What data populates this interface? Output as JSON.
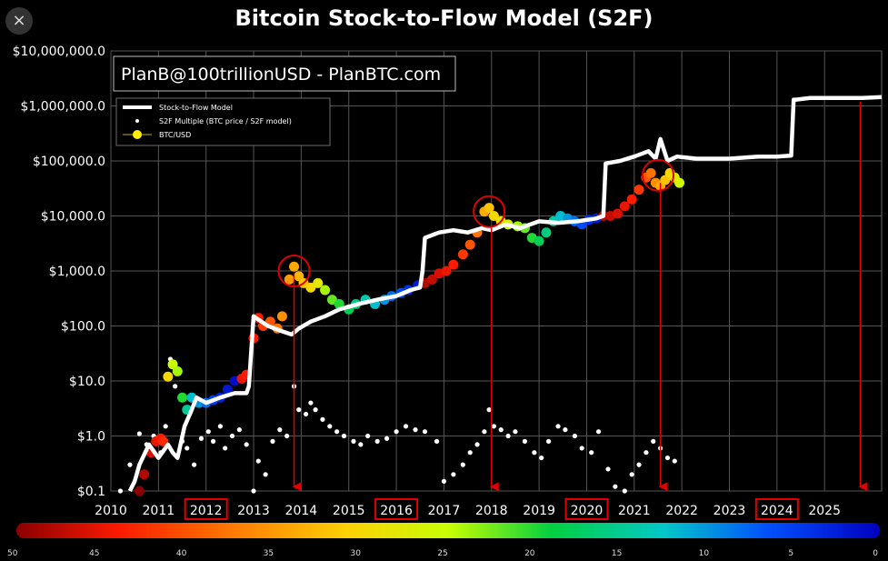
{
  "close_label": "×",
  "chart_data": {
    "type": "scatter",
    "title": "Bitcoin Stock-to-Flow Model (S2F)",
    "credit": "PlanB@100trillionUSD - PlanBTC.com",
    "y_scale": "log",
    "ylim": [
      0.1,
      10000000
    ],
    "xlim": [
      2010,
      2026.2
    ],
    "y_ticks": [
      {
        "value": 0.1,
        "label": "$0.1"
      },
      {
        "value": 1,
        "label": "$1.0"
      },
      {
        "value": 10,
        "label": "$10.0"
      },
      {
        "value": 100,
        "label": "$100.0"
      },
      {
        "value": 1000,
        "label": "$1,000.0"
      },
      {
        "value": 10000,
        "label": "$10,000.0"
      },
      {
        "value": 100000,
        "label": "$100,000.0"
      },
      {
        "value": 1000000,
        "label": "$1,000,000.0"
      },
      {
        "value": 10000000,
        "label": "$10,000,000.0"
      }
    ],
    "x_ticks": [
      {
        "value": 2010,
        "label": "2010",
        "boxed": false
      },
      {
        "value": 2011,
        "label": "2011",
        "boxed": false
      },
      {
        "value": 2012,
        "label": "2012",
        "boxed": true
      },
      {
        "value": 2013,
        "label": "2013",
        "boxed": false
      },
      {
        "value": 2014,
        "label": "2014",
        "boxed": false
      },
      {
        "value": 2015,
        "label": "2015",
        "boxed": false
      },
      {
        "value": 2016,
        "label": "2016",
        "boxed": true
      },
      {
        "value": 2017,
        "label": "2017",
        "boxed": false
      },
      {
        "value": 2018,
        "label": "2018",
        "boxed": false
      },
      {
        "value": 2019,
        "label": "2019",
        "boxed": false
      },
      {
        "value": 2020,
        "label": "2020",
        "boxed": true
      },
      {
        "value": 2021,
        "label": "2021",
        "boxed": false
      },
      {
        "value": 2022,
        "label": "2022",
        "boxed": false
      },
      {
        "value": 2023,
        "label": "2023",
        "boxed": false
      },
      {
        "value": 2024,
        "label": "2024",
        "boxed": true
      },
      {
        "value": 2025,
        "label": "2025",
        "boxed": false
      }
    ],
    "grid": true,
    "legend_position": "top-left",
    "legend": [
      {
        "name": "Stock-to-Flow Model",
        "marker": "line",
        "color": "#ffffff"
      },
      {
        "name": "S2F Multiple (BTC price / S2F model)",
        "marker": "dot",
        "color": "#ffffff"
      },
      {
        "name": "BTC/USD",
        "marker": "circle",
        "color": "#ffee00"
      }
    ],
    "series": [
      {
        "name": "Stock-to-Flow Model",
        "kind": "line",
        "color": "#ffffff",
        "x": [
          2010.4,
          2010.5,
          2010.6,
          2010.8,
          2011.0,
          2011.2,
          2011.3,
          2011.4,
          2011.55,
          2011.7,
          2011.8,
          2012.0,
          2012.3,
          2012.6,
          2012.85,
          2012.9,
          2013.0,
          2013.3,
          2013.6,
          2013.8,
          2013.95,
          2014.2,
          2014.5,
          2014.8,
          2015.2,
          2015.6,
          2016.0,
          2016.3,
          2016.5,
          2016.55,
          2016.6,
          2016.9,
          2017.2,
          2017.5,
          2017.8,
          2018.0,
          2018.3,
          2018.6,
          2019.0,
          2019.4,
          2019.8,
          2020.2,
          2020.35,
          2020.4,
          2020.7,
          2021.0,
          2021.3,
          2021.45,
          2021.55,
          2021.7,
          2021.9,
          2022.3,
          2023.0,
          2023.6,
          2024.0,
          2024.3,
          2024.35,
          2024.4,
          2024.7,
          2025.2,
          2025.8,
          2026.2
        ],
        "y": [
          0.1,
          0.15,
          0.3,
          0.7,
          0.4,
          0.7,
          0.5,
          0.4,
          1.5,
          3,
          5,
          4,
          5,
          6,
          6,
          8,
          150,
          100,
          80,
          70,
          90,
          120,
          150,
          200,
          250,
          300,
          350,
          450,
          500,
          1000,
          4000,
          5000,
          5500,
          5000,
          6000,
          5500,
          7000,
          6000,
          8000,
          7500,
          8000,
          9000,
          10000,
          90000,
          100000,
          120000,
          150000,
          110000,
          250000,
          100000,
          120000,
          110000,
          110000,
          120000,
          120000,
          125000,
          1300000,
          1300000,
          1400000,
          1400000,
          1400000,
          1450000
        ]
      },
      {
        "name": "S2F Multiple (BTC price / S2F model)",
        "kind": "dots",
        "color": "#ffffff",
        "x": [
          2010.2,
          2010.4,
          2010.6,
          2010.75,
          2010.9,
          2011.05,
          2011.15,
          2011.25,
          2011.35,
          2011.5,
          2011.6,
          2011.75,
          2011.9,
          2012.05,
          2012.15,
          2012.3,
          2012.4,
          2012.55,
          2012.7,
          2012.85,
          2013.0,
          2013.1,
          2013.25,
          2013.4,
          2013.55,
          2013.7,
          2013.85,
          2013.95,
          2014.1,
          2014.2,
          2014.3,
          2014.45,
          2014.6,
          2014.75,
          2014.9,
          2015.1,
          2015.25,
          2015.4,
          2015.6,
          2015.8,
          2016.0,
          2016.2,
          2016.4,
          2016.6,
          2016.85,
          2017.0,
          2017.2,
          2017.4,
          2017.55,
          2017.7,
          2017.85,
          2017.95,
          2018.05,
          2018.2,
          2018.35,
          2018.5,
          2018.7,
          2018.9,
          2019.05,
          2019.2,
          2019.4,
          2019.55,
          2019.75,
          2019.9,
          2020.1,
          2020.25,
          2020.45,
          2020.6,
          2020.8,
          2020.95,
          2021.1,
          2021.25,
          2021.4,
          2021.55,
          2021.7,
          2021.85
        ],
        "y": [
          0.1,
          0.3,
          1.1,
          0.7,
          1.0,
          0.5,
          1.5,
          25,
          8,
          0.8,
          0.6,
          0.3,
          0.9,
          1.2,
          0.8,
          1.5,
          0.6,
          1.0,
          1.3,
          0.7,
          0.1,
          0.35,
          0.2,
          0.8,
          1.3,
          1.0,
          8,
          3,
          2.5,
          4,
          3,
          2,
          1.5,
          1.2,
          1.0,
          0.8,
          0.7,
          1.0,
          0.8,
          0.9,
          1.2,
          1.5,
          1.3,
          1.2,
          0.8,
          0.15,
          0.2,
          0.3,
          0.5,
          0.7,
          1.2,
          3,
          1.5,
          1.3,
          1.0,
          1.2,
          0.8,
          0.5,
          0.4,
          0.8,
          1.5,
          1.3,
          1.0,
          0.6,
          0.5,
          1.2,
          0.25,
          0.12,
          0.1,
          0.2,
          0.3,
          0.5,
          0.8,
          0.6,
          0.4,
          0.35
        ]
      },
      {
        "name": "BTC/USD",
        "kind": "colored-dots",
        "colorscale": "S2F days to halving (0-50)",
        "x": [
          2010.6,
          2010.7,
          2010.85,
          2010.95,
          2011.05,
          2011.1,
          2011.2,
          2011.3,
          2011.4,
          2011.5,
          2011.6,
          2011.7,
          2011.85,
          2012.0,
          2012.15,
          2012.3,
          2012.45,
          2012.6,
          2012.75,
          2012.85,
          2013.0,
          2013.1,
          2013.2,
          2013.35,
          2013.5,
          2013.6,
          2013.75,
          2013.85,
          2013.95,
          2014.05,
          2014.2,
          2014.35,
          2014.5,
          2014.65,
          2014.8,
          2015.0,
          2015.15,
          2015.35,
          2015.55,
          2015.75,
          2015.9,
          2016.1,
          2016.25,
          2016.45,
          2016.6,
          2016.75,
          2016.9,
          2017.05,
          2017.2,
          2017.4,
          2017.55,
          2017.7,
          2017.85,
          2017.95,
          2018.05,
          2018.2,
          2018.35,
          2018.55,
          2018.7,
          2018.85,
          2019.0,
          2019.15,
          2019.3,
          2019.45,
          2019.6,
          2019.75,
          2019.9,
          2020.05,
          2020.2,
          2020.35,
          2020.5,
          2020.65,
          2020.8,
          2020.95,
          2021.1,
          2021.25,
          2021.35,
          2021.45,
          2021.55,
          2021.65,
          2021.75,
          2021.85,
          2021.95
        ],
        "y": [
          0.1,
          0.2,
          0.5,
          0.8,
          0.9,
          0.8,
          12,
          20,
          15,
          5,
          3,
          5,
          4,
          4,
          4.5,
          5,
          7,
          10,
          11,
          13,
          60,
          140,
          100,
          120,
          90,
          150,
          700,
          1200,
          800,
          600,
          500,
          600,
          450,
          300,
          250,
          200,
          250,
          300,
          250,
          300,
          350,
          400,
          450,
          550,
          600,
          700,
          900,
          1000,
          1300,
          2000,
          3000,
          5000,
          12000,
          14000,
          10000,
          8000,
          7000,
          6500,
          6000,
          4000,
          3500,
          5000,
          8000,
          10000,
          9000,
          8000,
          7000,
          8500,
          9000,
          10000,
          10000,
          11000,
          15000,
          20000,
          30000,
          50000,
          60000,
          40000,
          35000,
          45000,
          60000,
          50000,
          40000
        ],
        "c": [
          50,
          48,
          46,
          45,
          44,
          43,
          30,
          25,
          24,
          20,
          15,
          12,
          10,
          8,
          5,
          3,
          2,
          1,
          45,
          44,
          44,
          44,
          42,
          40,
          38,
          36,
          35,
          34,
          33,
          32,
          30,
          28,
          24,
          22,
          20,
          18,
          16,
          14,
          12,
          10,
          8,
          6,
          4,
          2,
          48,
          47,
          46,
          45,
          44,
          42,
          40,
          38,
          34,
          32,
          30,
          28,
          26,
          24,
          22,
          20,
          18,
          16,
          14,
          12,
          10,
          8,
          6,
          4,
          2,
          48,
          47,
          46,
          45,
          44,
          42,
          40,
          38,
          36,
          34,
          32,
          30,
          28,
          26
        ]
      }
    ],
    "annotations": {
      "circles": [
        {
          "x": 2013.85,
          "y": 1000
        },
        {
          "x": 2017.95,
          "y": 12000
        },
        {
          "x": 2021.5,
          "y": 55000
        }
      ],
      "arrows": [
        {
          "x": 2013.85,
          "y_from": 900,
          "y_to": 0.12
        },
        {
          "x": 2018.0,
          "y_from": 6000,
          "y_to": 0.12
        },
        {
          "x": 2021.55,
          "y_from": 40000,
          "y_to": 0.12
        },
        {
          "x": 2025.75,
          "y_from": 1200000,
          "y_to": 0.12
        }
      ]
    },
    "colorbar": {
      "labels": [
        {
          "value": 50,
          "label": "50"
        },
        {
          "value": 45,
          "label": "45"
        },
        {
          "value": 40,
          "label": "40"
        },
        {
          "value": 35,
          "label": "35"
        },
        {
          "value": 30,
          "label": "30"
        },
        {
          "value": 25,
          "label": "25"
        },
        {
          "value": 20,
          "label": "20"
        },
        {
          "value": 15,
          "label": "15"
        },
        {
          "value": 10,
          "label": "10"
        },
        {
          "value": 5,
          "label": "5"
        },
        {
          "value": 0,
          "label": "0"
        }
      ],
      "range": [
        50,
        0
      ]
    }
  }
}
